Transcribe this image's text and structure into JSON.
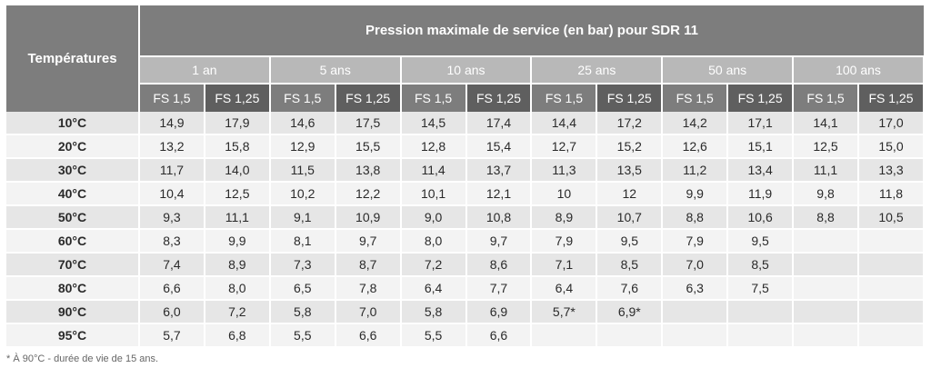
{
  "table": {
    "temps_header": "Températures",
    "title": "Pression maximale de service (en bar) pour SDR 11",
    "periods": [
      "1 an",
      "5 ans",
      "10 ans",
      "25 ans",
      "50 ans",
      "100 ans"
    ],
    "fs_labels": [
      "FS 1,5",
      "FS 1,25"
    ],
    "rows": [
      {
        "temp": "10°C",
        "values": [
          "14,9",
          "17,9",
          "14,6",
          "17,5",
          "14,5",
          "17,4",
          "14,4",
          "17,2",
          "14,2",
          "17,1",
          "14,1",
          "17,0"
        ]
      },
      {
        "temp": "20°C",
        "values": [
          "13,2",
          "15,8",
          "12,9",
          "15,5",
          "12,8",
          "15,4",
          "12,7",
          "15,2",
          "12,6",
          "15,1",
          "12,5",
          "15,0"
        ]
      },
      {
        "temp": "30°C",
        "values": [
          "11,7",
          "14,0",
          "11,5",
          "13,8",
          "11,4",
          "13,7",
          "11,3",
          "13,5",
          "11,2",
          "13,4",
          "11,1",
          "13,3"
        ]
      },
      {
        "temp": "40°C",
        "values": [
          "10,4",
          "12,5",
          "10,2",
          "12,2",
          "10,1",
          "12,1",
          "10",
          "12",
          "9,9",
          "11,9",
          "9,8",
          "11,8"
        ]
      },
      {
        "temp": "50°C",
        "values": [
          "9,3",
          "11,1",
          "9,1",
          "10,9",
          "9,0",
          "10,8",
          "8,9",
          "10,7",
          "8,8",
          "10,6",
          "8,8",
          "10,5"
        ]
      },
      {
        "temp": "60°C",
        "values": [
          "8,3",
          "9,9",
          "8,1",
          "9,7",
          "8,0",
          "9,7",
          "7,9",
          "9,5",
          "7,9",
          "9,5",
          "",
          ""
        ]
      },
      {
        "temp": "70°C",
        "values": [
          "7,4",
          "8,9",
          "7,3",
          "8,7",
          "7,2",
          "8,6",
          "7,1",
          "8,5",
          "7,0",
          "8,5",
          "",
          ""
        ]
      },
      {
        "temp": "80°C",
        "values": [
          "6,6",
          "8,0",
          "6,5",
          "7,8",
          "6,4",
          "7,7",
          "6,4",
          "7,6",
          "6,3",
          "7,5",
          "",
          ""
        ]
      },
      {
        "temp": "90°C",
        "values": [
          "6,0",
          "7,2",
          "5,8",
          "7,0",
          "5,8",
          "6,9",
          "5,7*",
          "6,9*",
          "",
          "",
          "",
          ""
        ]
      },
      {
        "temp": "95°C",
        "values": [
          "5,7",
          "6,8",
          "5,5",
          "6,6",
          "5,5",
          "6,6",
          "",
          "",
          "",
          "",
          "",
          ""
        ]
      }
    ]
  },
  "footnote": "* À 90°C - durée de vie de 15 ans."
}
